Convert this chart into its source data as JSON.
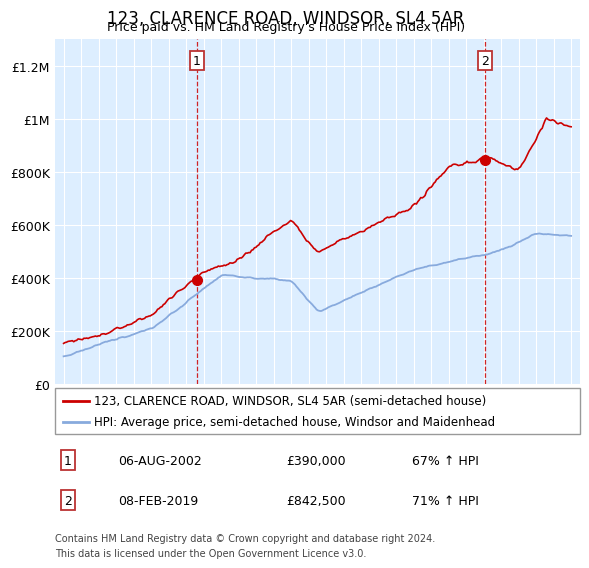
{
  "title": "123, CLARENCE ROAD, WINDSOR, SL4 5AR",
  "subtitle": "Price paid vs. HM Land Registry's House Price Index (HPI)",
  "ylim": [
    0,
    1300000
  ],
  "yticks": [
    0,
    200000,
    400000,
    600000,
    800000,
    1000000,
    1200000
  ],
  "ytick_labels": [
    "£0",
    "£200K",
    "£400K",
    "£600K",
    "£800K",
    "£1M",
    "£1.2M"
  ],
  "background_color": "#ddeeff",
  "red_color": "#cc0000",
  "blue_color": "#88aadd",
  "sale1_date": 2002.6,
  "sale1_price": 390000,
  "sale2_date": 2019.1,
  "sale2_price": 842500,
  "legend_line1": "123, CLARENCE ROAD, WINDSOR, SL4 5AR (semi-detached house)",
  "legend_line2": "HPI: Average price, semi-detached house, Windsor and Maidenhead",
  "note1_date": "06-AUG-2002",
  "note1_price": "£390,000",
  "note1_hpi": "67% ↑ HPI",
  "note2_date": "08-FEB-2019",
  "note2_price": "£842,500",
  "note2_hpi": "71% ↑ HPI",
  "footer": "Contains HM Land Registry data © Crown copyright and database right 2024.\nThis data is licensed under the Open Government Licence v3.0."
}
